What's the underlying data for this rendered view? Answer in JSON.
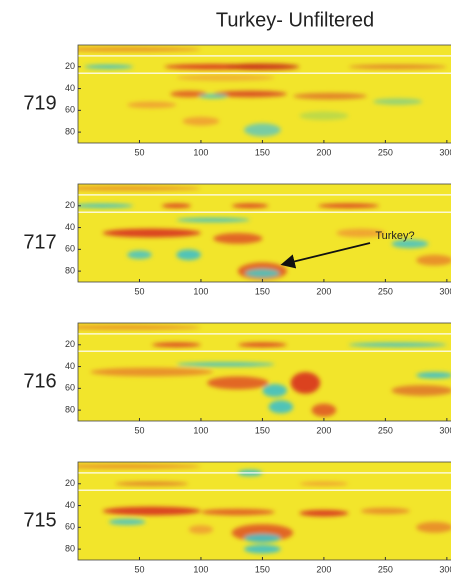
{
  "title": "Turkey- Unfiltered",
  "chart_data": [
    {
      "type": "heatmap",
      "label": "719",
      "xlim": [
        0,
        305
      ],
      "ylim": [
        0,
        90
      ],
      "xticks": [
        50,
        100,
        150,
        200,
        250,
        300
      ],
      "yticks": [
        20,
        40,
        60,
        80
      ]
    },
    {
      "type": "heatmap",
      "label": "717",
      "xlim": [
        0,
        305
      ],
      "ylim": [
        0,
        90
      ],
      "xticks": [
        50,
        100,
        150,
        200,
        250,
        300
      ],
      "yticks": [
        20,
        40,
        60,
        80
      ],
      "annotation": "Turkey?"
    },
    {
      "type": "heatmap",
      "label": "716",
      "xlim": [
        0,
        305
      ],
      "ylim": [
        0,
        90
      ],
      "xticks": [
        50,
        100,
        150,
        200,
        250,
        300
      ],
      "yticks": [
        20,
        40,
        60,
        80
      ]
    },
    {
      "type": "heatmap",
      "label": "715",
      "xlim": [
        0,
        305
      ],
      "ylim": [
        0,
        90
      ],
      "xticks": [
        50,
        100,
        150,
        200,
        250,
        300
      ],
      "yticks": [
        20,
        40,
        60,
        80
      ]
    }
  ]
}
